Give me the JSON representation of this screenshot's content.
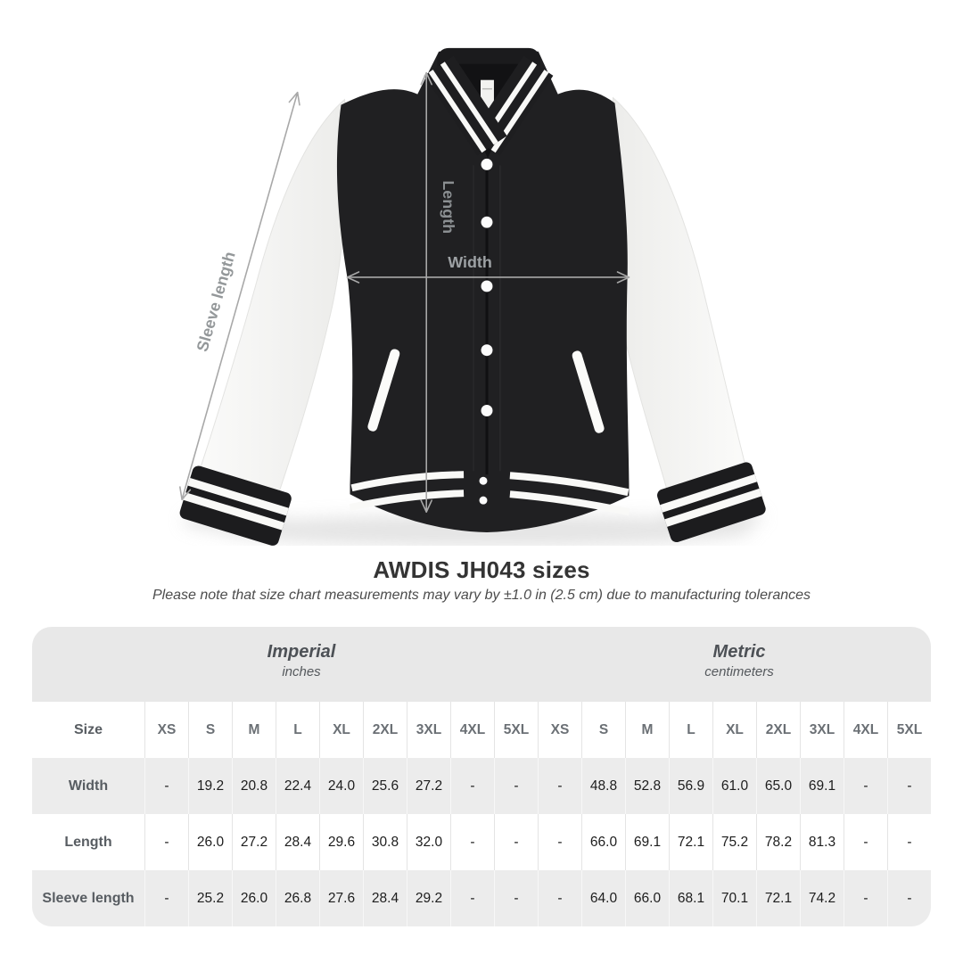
{
  "figure": {
    "labels": {
      "sleeve_length": "Sleeve length",
      "length": "Length",
      "width": "Width"
    },
    "colors": {
      "jacket_black": "#202022",
      "sleeve_white": "#f5f5f3",
      "stripe_white": "#f9f9f7",
      "arrow_gray": "#a8a8a8",
      "label_gray": "#94989a"
    }
  },
  "title": "AWDIS JH043 sizes",
  "subtitle": "Please note that size chart measurements may vary by ±1.0 in (2.5 cm) due to manufacturing tolerances",
  "table": {
    "unit_groups": [
      {
        "label": "Imperial",
        "sublabel": "inches"
      },
      {
        "label": "Metric",
        "sublabel": "centimeters"
      }
    ],
    "size_header": "Size",
    "sizes": [
      "XS",
      "S",
      "M",
      "L",
      "XL",
      "2XL",
      "3XL",
      "4XL",
      "5XL"
    ],
    "rows": [
      {
        "label": "Width",
        "imperial": [
          "-",
          "19.2",
          "20.8",
          "22.4",
          "24.0",
          "25.6",
          "27.2",
          "-",
          "-"
        ],
        "metric": [
          "-",
          "48.8",
          "52.8",
          "56.9",
          "61.0",
          "65.0",
          "69.1",
          "-",
          "-"
        ]
      },
      {
        "label": "Length",
        "imperial": [
          "-",
          "26.0",
          "27.2",
          "28.4",
          "29.6",
          "30.8",
          "32.0",
          "-",
          "-"
        ],
        "metric": [
          "-",
          "66.0",
          "69.1",
          "72.1",
          "75.2",
          "78.2",
          "81.3",
          "-",
          "-"
        ]
      },
      {
        "label": "Sleeve length",
        "imperial": [
          "-",
          "25.2",
          "26.0",
          "26.8",
          "27.6",
          "28.4",
          "29.2",
          "-",
          "-"
        ],
        "metric": [
          "-",
          "64.0",
          "66.0",
          "68.1",
          "70.1",
          "72.1",
          "74.2",
          "-",
          "-"
        ]
      }
    ]
  }
}
